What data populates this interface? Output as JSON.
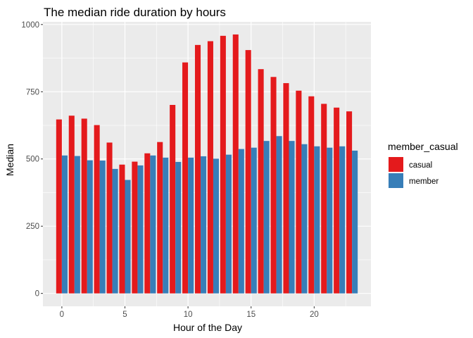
{
  "chart_data": {
    "type": "bar",
    "title": "The median ride duration by hours",
    "xlabel": "Hour of the Day",
    "ylabel": "Median",
    "x": [
      0,
      1,
      2,
      3,
      4,
      5,
      6,
      7,
      8,
      9,
      10,
      11,
      12,
      13,
      14,
      15,
      16,
      17,
      18,
      19,
      20,
      21,
      22,
      23
    ],
    "xlim": [
      -1.5,
      24.5
    ],
    "ylim": [
      -48,
      1010
    ],
    "x_ticks": [
      0,
      5,
      10,
      15,
      20
    ],
    "y_ticks": [
      0,
      250,
      500,
      750,
      1000
    ],
    "legend": {
      "title": "member_casual",
      "placement": "right"
    },
    "grid": true,
    "background": "#ebebeb",
    "series": [
      {
        "name": "casual",
        "color": "#e41a1c",
        "values": [
          647,
          661,
          650,
          626,
          561,
          479,
          490,
          521,
          563,
          701,
          859,
          924,
          938,
          958,
          963,
          905,
          834,
          805,
          782,
          754,
          733,
          705,
          691,
          677
        ]
      },
      {
        "name": "member",
        "color": "#377eb8",
        "values": [
          513,
          511,
          495,
          494,
          463,
          422,
          476,
          513,
          505,
          489,
          505,
          510,
          501,
          516,
          537,
          542,
          567,
          585,
          567,
          555,
          547,
          542,
          547,
          531
        ]
      }
    ]
  }
}
